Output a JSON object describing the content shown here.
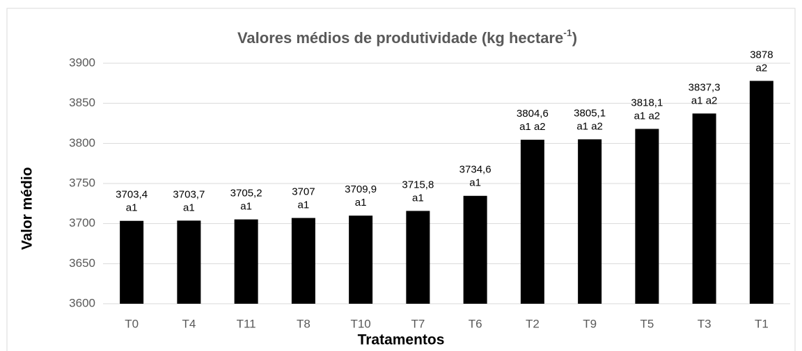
{
  "chart_data": {
    "type": "bar",
    "title": "Valores médios de produtividade (kg hectare",
    "title_superscript": "-1",
    "title_end": ")",
    "y_label": "Valor médio",
    "x_label": "Tratamentos",
    "categories": [
      "T0",
      "T4",
      "T11",
      "T8",
      "T10",
      "T7",
      "T6",
      "T2",
      "T9",
      "T5",
      "T3",
      "T1"
    ],
    "values": [
      3703.4,
      3703.7,
      3705.2,
      3707,
      3709.9,
      3715.8,
      3734.6,
      3804.6,
      3805.1,
      3818.1,
      3837.3,
      3878
    ],
    "value_labels": [
      "3703,4",
      "3703,7",
      "3705,2",
      "3707",
      "3709,9",
      "3715,8",
      "3734,6",
      "3804,6",
      "3805,1",
      "3818,1",
      "3837,3",
      "3878"
    ],
    "group_labels": [
      "a1",
      "a1",
      "a1",
      "a1",
      "a1",
      "a1",
      "a1",
      "a1 a2",
      "a1 a2",
      "a1 a2",
      "a1 a2",
      "a2"
    ],
    "color": "#000000",
    "ylim": [
      3600,
      3900
    ],
    "yticks": [
      3600,
      3650,
      3700,
      3750,
      3800,
      3850,
      3900
    ],
    "grid": true
  }
}
